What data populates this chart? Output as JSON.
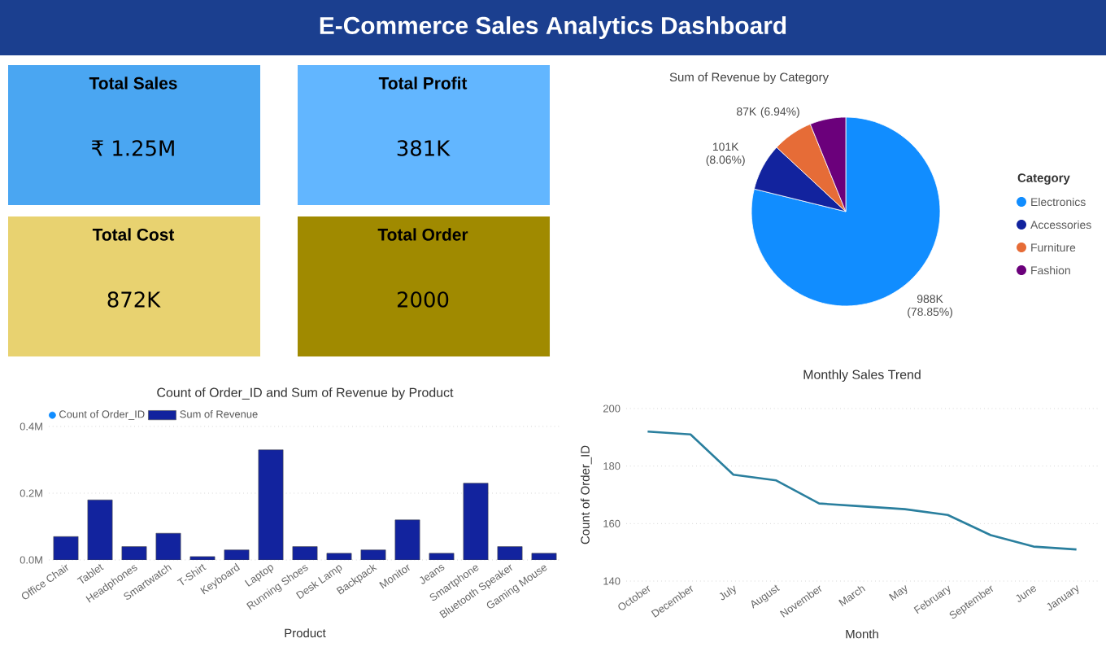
{
  "chart_data": [
    {
      "type": "other",
      "title": "E-Commerce Sales Analytics Dashboard",
      "categories": [
        "Total Sales",
        "Total Profit",
        "Total Cost",
        "Total Order"
      ],
      "value_labels": [
        "₹ 1.25M",
        "381K",
        "872K",
        "2000"
      ],
      "colors": [
        "#4aa6f2",
        "#62b6ff",
        "#e8d270",
        "#a08a00"
      ]
    },
    {
      "type": "pie",
      "title": "Sum of Revenue by Category",
      "legend_title": "Category",
      "legend": "right",
      "categories": [
        "Electronics",
        "Accessories",
        "Furniture",
        "Fashion"
      ],
      "values": [
        988000,
        101000,
        87000,
        77000
      ],
      "value_labels": [
        "988K (78.85%)",
        "101K (8.06%)",
        "87K (6.94%)",
        null
      ],
      "colors": [
        "#118dff",
        "#12239e",
        "#e66c37",
        "#6b007b"
      ]
    },
    {
      "type": "bar",
      "title": "Count of Order_ID and Sum of Revenue by Product",
      "xlabel": "Product",
      "legend": "top left",
      "grid": "y",
      "categories": [
        "Office Chair",
        "Tablet",
        "Headphones",
        "Smartwatch",
        "T-Shirt",
        "Keyboard",
        "Laptop",
        "Running Shoes",
        "Desk Lamp",
        "Backpack",
        "Monitor",
        "Jeans",
        "Smartphone",
        "Bluetooth Speaker",
        "Gaming Mouse"
      ],
      "series": [
        {
          "name": "Count of Order_ID",
          "color": "#118dff",
          "values": [
            null,
            null,
            null,
            null,
            null,
            null,
            null,
            null,
            null,
            null,
            null,
            null,
            null,
            null,
            null
          ]
        },
        {
          "name": "Sum of Revenue",
          "color": "#12239e",
          "values": [
            0.07,
            0.18,
            0.04,
            0.08,
            0.01,
            0.03,
            0.33,
            0.04,
            0.02,
            0.03,
            0.12,
            0.02,
            0.23,
            0.04,
            0.02
          ]
        }
      ],
      "ylim": [
        0,
        0.4
      ],
      "yticks": [
        {
          "value": 0,
          "label": "0.0M"
        },
        {
          "value": 0.2,
          "label": "0.2M"
        },
        {
          "value": 0.4,
          "label": "0.4M"
        }
      ]
    },
    {
      "type": "line",
      "title": "Monthly Sales Trend",
      "xlabel": "Month",
      "ylabel": "Count of Order_ID",
      "grid": "y",
      "marker": "none",
      "line_style": "solid",
      "categories": [
        "October",
        "December",
        "July",
        "August",
        "November",
        "March",
        "May",
        "February",
        "September",
        "June",
        "January"
      ],
      "series": [
        {
          "color": "#2a7f9e",
          "values": [
            192,
            191,
            177,
            175,
            167,
            166,
            165,
            163,
            156,
            152,
            151
          ]
        }
      ],
      "ylim": [
        140,
        200
      ],
      "yticks": [
        140,
        160,
        180,
        200
      ]
    }
  ]
}
